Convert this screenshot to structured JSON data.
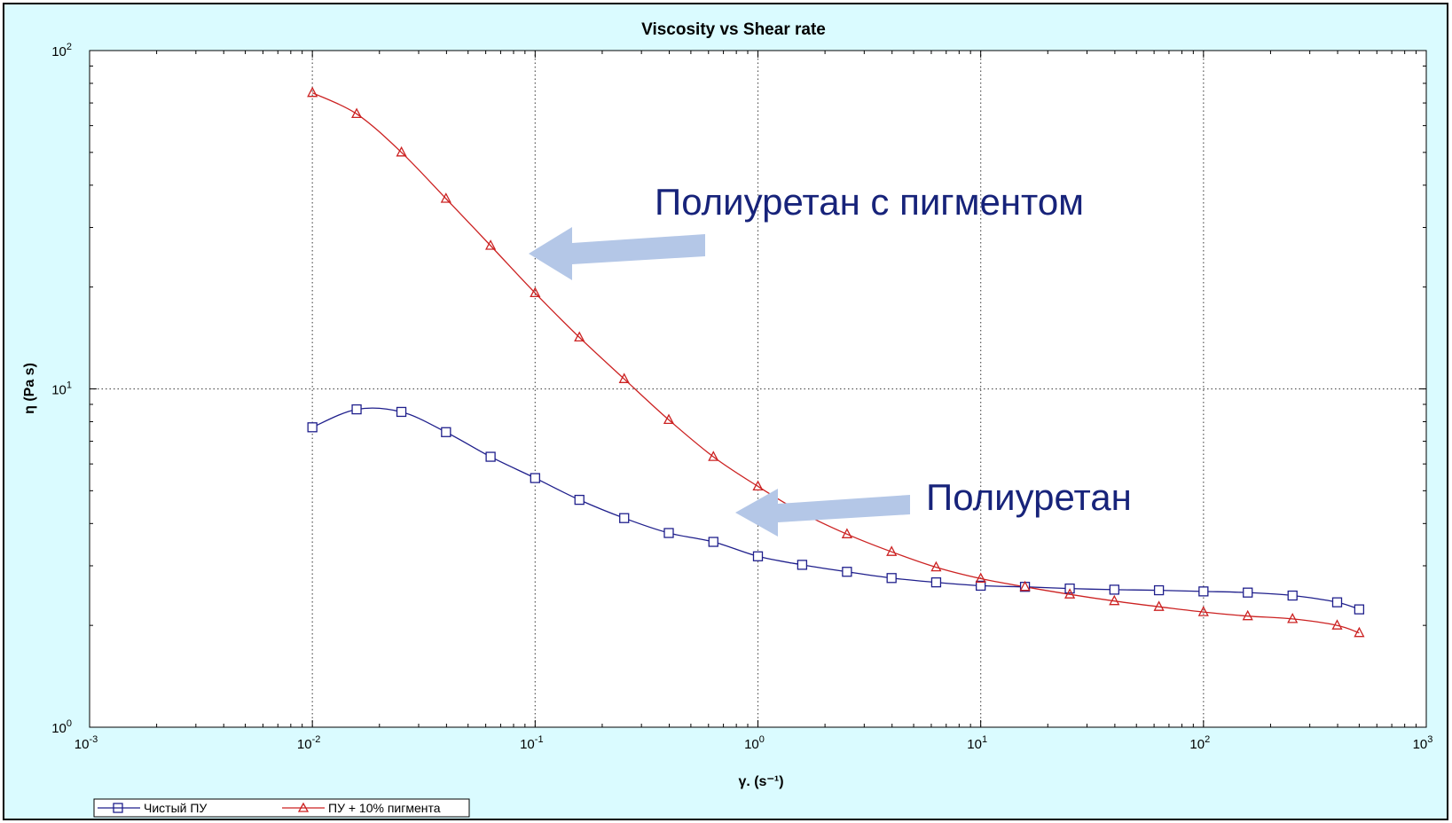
{
  "chart_data": {
    "type": "line",
    "title": "Viscosity vs Shear rate",
    "xlabel": "γ. (s⁻¹)",
    "ylabel": "η (Pa s)",
    "x_scale": "log",
    "y_scale": "log",
    "xlim": [
      0.001,
      1000
    ],
    "ylim": [
      1,
      100
    ],
    "x_ticks": [
      {
        "value": 0.001,
        "base": "10",
        "exp": "-3"
      },
      {
        "value": 0.01,
        "base": "10",
        "exp": "-2"
      },
      {
        "value": 0.1,
        "base": "10",
        "exp": "-1"
      },
      {
        "value": 1,
        "base": "10",
        "exp": "0"
      },
      {
        "value": 10,
        "base": "10",
        "exp": "1"
      },
      {
        "value": 100,
        "base": "10",
        "exp": "2"
      },
      {
        "value": 1000,
        "base": "10",
        "exp": "3"
      }
    ],
    "y_ticks": [
      {
        "value": 1,
        "base": "10",
        "exp": "0"
      },
      {
        "value": 10,
        "base": "10",
        "exp": "1"
      },
      {
        "value": 100,
        "base": "10",
        "exp": "2"
      }
    ],
    "grid": "dotted major gridlines",
    "legend_position": "bottom-left",
    "series": [
      {
        "name": "Чистый ПУ",
        "color": "#1f1f8c",
        "marker": "square",
        "x": [
          0.01,
          0.0158,
          0.0251,
          0.0398,
          0.0631,
          0.1,
          0.158,
          0.251,
          0.398,
          0.631,
          1,
          1.58,
          2.51,
          3.98,
          6.31,
          10,
          15.8,
          25.1,
          39.8,
          63.1,
          100,
          158,
          251,
          398,
          500
        ],
        "y": [
          7.7,
          8.7,
          8.55,
          7.45,
          6.3,
          5.45,
          4.7,
          4.15,
          3.75,
          3.53,
          3.2,
          3.02,
          2.88,
          2.76,
          2.68,
          2.62,
          2.6,
          2.57,
          2.55,
          2.54,
          2.52,
          2.5,
          2.45,
          2.34,
          2.23
        ]
      },
      {
        "name": "ПУ + 10% пигмента",
        "color": "#cc2222",
        "marker": "triangle",
        "x": [
          0.01,
          0.0158,
          0.0251,
          0.0398,
          0.0631,
          0.1,
          0.158,
          0.251,
          0.398,
          0.631,
          1,
          1.58,
          2.51,
          3.98,
          6.31,
          10,
          15.8,
          25.1,
          39.8,
          63.1,
          100,
          158,
          251,
          398,
          500
        ],
        "y": [
          75,
          65,
          50,
          36.5,
          26.5,
          19.2,
          14.2,
          10.7,
          8.1,
          6.3,
          5.15,
          4.3,
          3.72,
          3.3,
          2.97,
          2.75,
          2.6,
          2.47,
          2.36,
          2.27,
          2.19,
          2.13,
          2.09,
          2.0,
          1.9
        ]
      }
    ],
    "annotations": [
      {
        "text": "Полиуретан с пигментом",
        "target": "ПУ + 10% пигмента"
      },
      {
        "text": "Полиуретан",
        "target": "Чистый ПУ"
      }
    ]
  }
}
